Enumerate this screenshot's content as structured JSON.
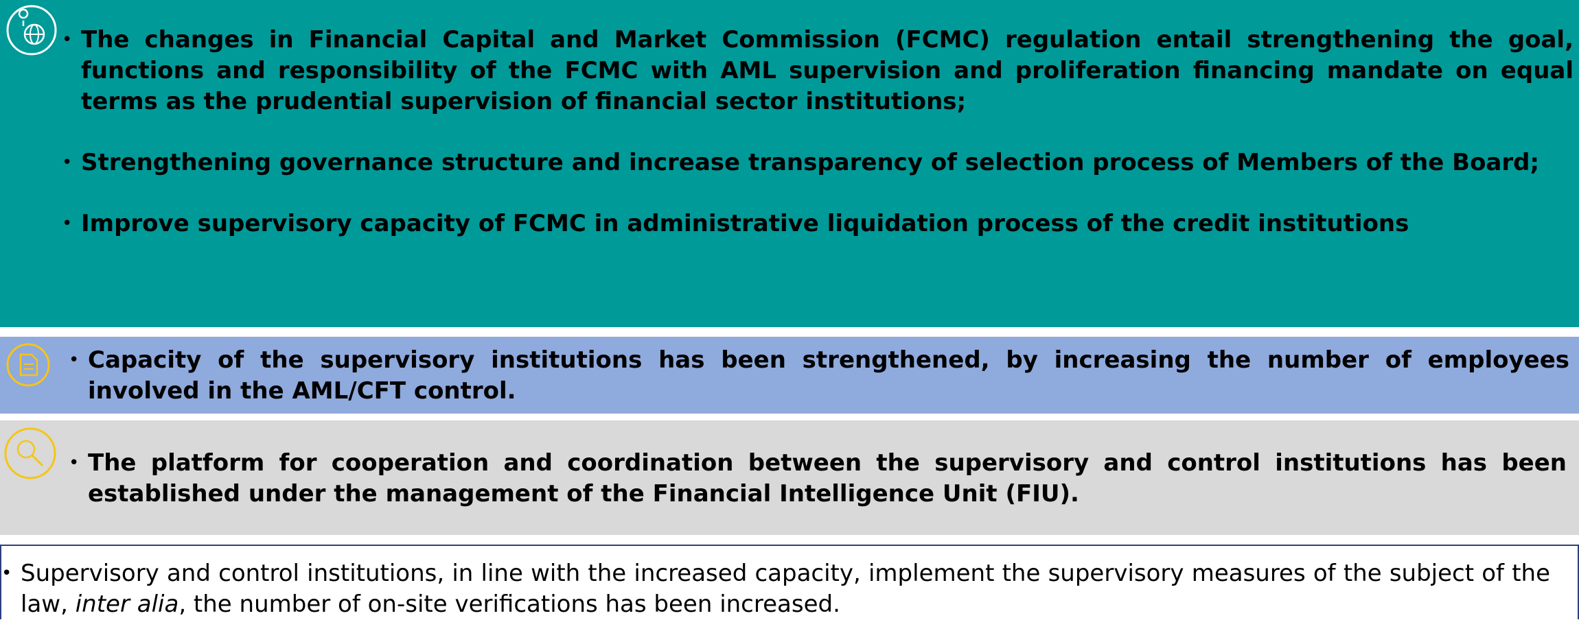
{
  "sections": [
    {
      "bullets": [
        "The changes in Financial Capital and Market Commission (FCMC) regulation entail strengthening the goal, functions and responsibility of the FCMC with AML supervision and proliferation financing mandate on equal terms as the prudential supervision of financial sector institutions;",
        "Strengthening governance structure and increase transparency of selection process of Members of the Board;",
        "Improve supervisory capacity of FCMC in administrative liquidation process of the credit institutions"
      ]
    },
    {
      "bullets": [
        "Capacity of the supervisory institutions has been strengthened, by increasing the number of employees involved in the AML/CFT control."
      ]
    },
    {
      "bullets": [
        "The platform for cooperation and coordination between the supervisory and control institutions has been established under the management of the Financial Intelligence Unit (FIU)."
      ]
    },
    {
      "bullets": [
        [
          "Supervisory and control institutions, in line with the increased capacity, implement the supervisory measures of the subject of the law, ",
          "inter alia",
          ", the number of on-site verifications has been increased."
        ]
      ]
    }
  ]
}
